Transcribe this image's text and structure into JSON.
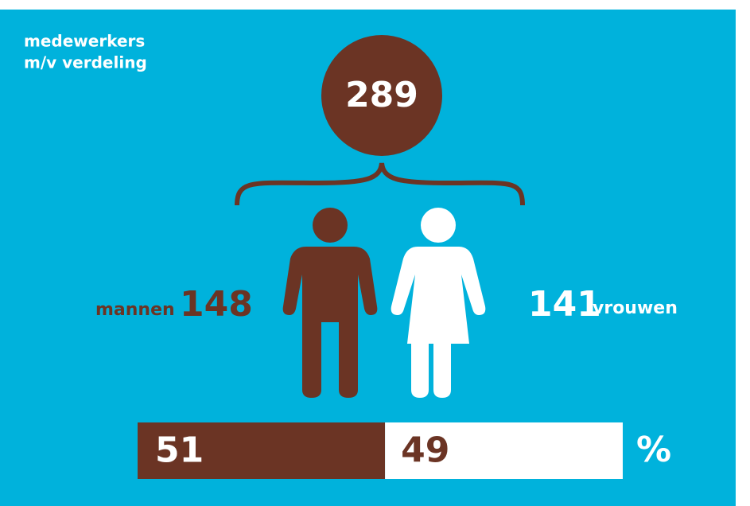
{
  "title": [
    "medewerkers",
    "m/v verdeling"
  ],
  "total": 289,
  "men": {
    "label": "mannen",
    "value": 148
  },
  "women": {
    "label": "vrouwen",
    "value": 141
  },
  "share": {
    "men": 51,
    "women": 49,
    "unit": "%"
  }
}
